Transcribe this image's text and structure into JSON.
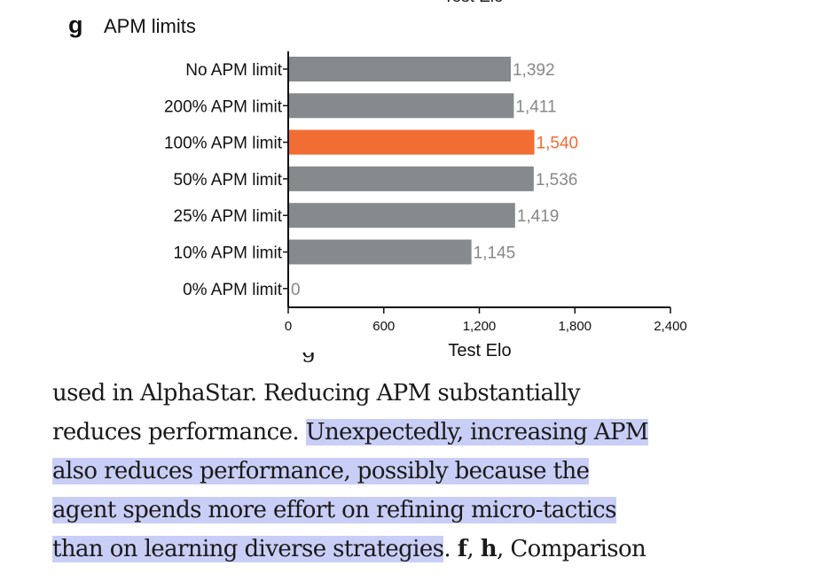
{
  "top_cut_label": "Test Elo",
  "panel": {
    "letter": "g",
    "title": "APM limits"
  },
  "chart_data": {
    "type": "bar",
    "orientation": "horizontal",
    "title": "APM limits",
    "categories": [
      "No APM limit",
      "200% APM limit",
      "100% APM limit",
      "50% APM limit",
      "25% APM limit",
      "10% APM limit",
      "0% APM limit"
    ],
    "values": [
      1392,
      1411,
      1540,
      1536,
      1419,
      1145,
      0
    ],
    "value_labels": [
      "1,392",
      "1,411",
      "1,540",
      "1,536",
      "1,419",
      "1,145",
      "0"
    ],
    "highlight_index": 2,
    "xlabel": "Test Elo",
    "ylabel": "",
    "xlim": [
      0,
      2400
    ],
    "xticks": [
      0,
      600,
      1200,
      1800,
      2400
    ],
    "xtick_labels": [
      "0",
      "600",
      "1,200",
      "1,800",
      "2,400"
    ],
    "colors": {
      "bar": "#878a8c",
      "highlight": "#f26d34",
      "axis": "#111111",
      "label": "#888888"
    }
  },
  "caption": {
    "line1": "used in AlphaStar. Reducing APM substantially",
    "line2_plain": "reduces performance. ",
    "line2_hl": "Unexpectedly, increasing APM",
    "line3_hl": "also reduces performance, possibly because the",
    "line4_hl": "agent spends more effort on refining micro-tactics",
    "line5_hl": "than on learning diverse strategies",
    "line5_after": ". ",
    "line5_f": "f",
    "line5_comma": ", ",
    "line5_h": "h",
    "line5_end": ", Comparison"
  }
}
